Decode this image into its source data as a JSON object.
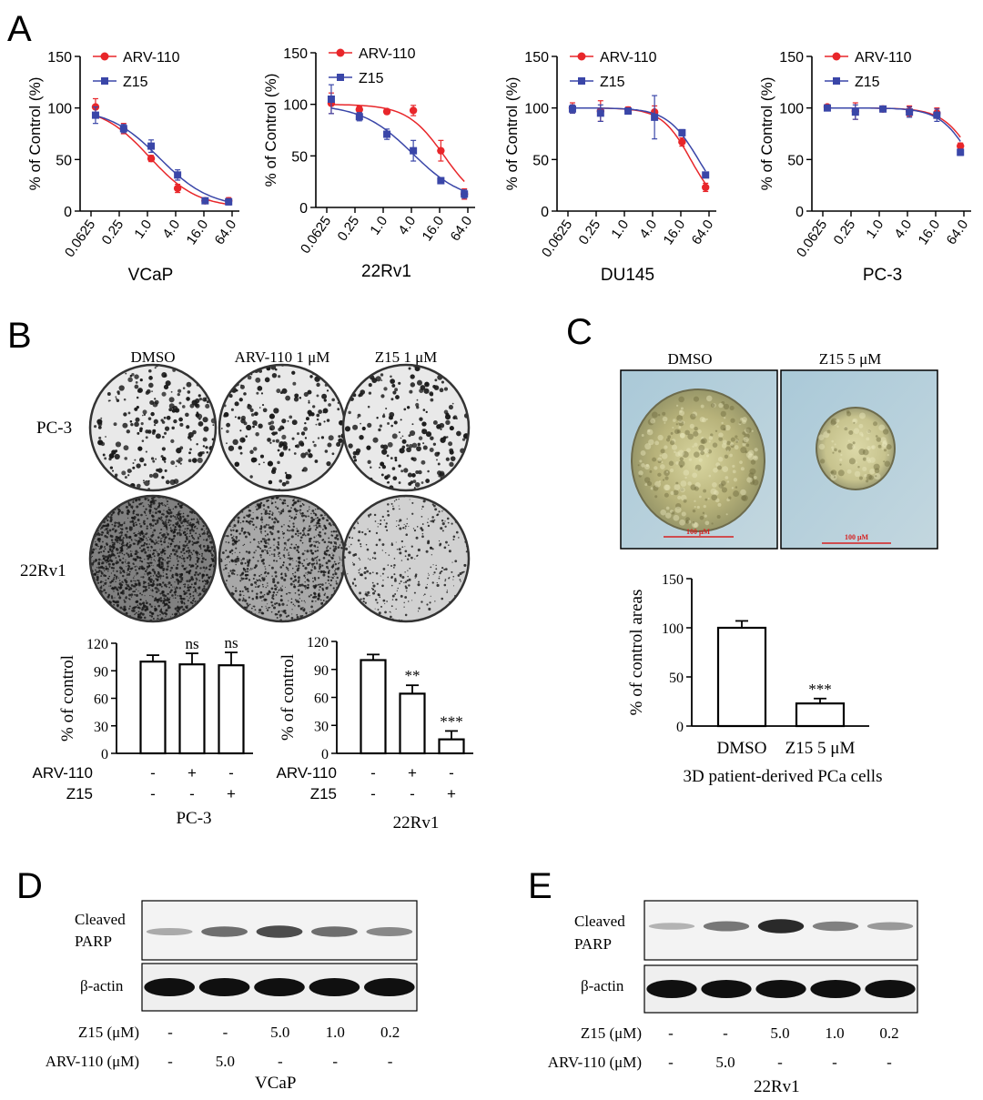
{
  "panel_letters": {
    "A": "A",
    "B": "B",
    "C": "C",
    "D": "D",
    "E": "E"
  },
  "colors": {
    "arv": "#e8262a",
    "z15": "#3a46a8",
    "axis": "#000000"
  },
  "legend": {
    "arv": "ARV-110",
    "z15": "Z15"
  },
  "panelA": {
    "ylabel": "% of Control (%)",
    "yticks": [
      "0",
      "50",
      "100",
      "150"
    ],
    "xticks": [
      "0.0625",
      "0.25",
      "1.0",
      "4.0",
      "16.0",
      "64.0"
    ]
  },
  "chart_data": [
    {
      "type": "line",
      "xlabel": "VCaP",
      "ylabel": "% of Control (%)",
      "x_scale": "log",
      "ylim": [
        0,
        150
      ],
      "x": [
        0.0625,
        0.25,
        1.0,
        4.0,
        16.0,
        64.0
      ],
      "series": [
        {
          "name": "ARV-110",
          "points": [
            [
              0.078,
              101
            ],
            [
              0.31,
              80
            ],
            [
              1.2,
              51
            ],
            [
              4.4,
              22
            ],
            [
              17,
              10
            ],
            [
              54,
              10
            ]
          ],
          "err": [
            8,
            5,
            3,
            4,
            2,
            3
          ],
          "fit": {
            "ic50": 1.1,
            "hill": 0.85,
            "top": 102,
            "bottom": 3
          }
        },
        {
          "name": "Z15",
          "points": [
            [
              0.078,
              93
            ],
            [
              0.31,
              80
            ],
            [
              1.2,
              63
            ],
            [
              4.4,
              35
            ],
            [
              17,
              10
            ],
            [
              54,
              9
            ]
          ],
          "err": [
            8,
            4,
            6,
            5,
            2,
            3
          ],
          "fit": {
            "ic50": 1.8,
            "hill": 0.8,
            "top": 100,
            "bottom": 3
          }
        }
      ]
    },
    {
      "type": "line",
      "xlabel": "22Rv1",
      "ylabel": "% of Control (%)",
      "x_scale": "log",
      "ylim": [
        0,
        150
      ],
      "x": [
        0.0625,
        0.25,
        1.0,
        4.0,
        16.0,
        64.0
      ],
      "series": [
        {
          "name": "ARV-110",
          "points": [
            [
              0.078,
              101
            ],
            [
              0.31,
              95
            ],
            [
              1.2,
              93
            ],
            [
              4.4,
              94
            ],
            [
              17,
              55
            ],
            [
              54,
              13
            ]
          ],
          "err": [
            10,
            3,
            2,
            5,
            10,
            5
          ],
          "fit": {
            "ic50": 20,
            "hill": 1.1,
            "top": 100,
            "bottom": 0
          }
        },
        {
          "name": "Z15",
          "points": [
            [
              0.078,
              105
            ],
            [
              0.31,
              88
            ],
            [
              1.2,
              71
            ],
            [
              4.4,
              55
            ],
            [
              17,
              26
            ],
            [
              54,
              13
            ]
          ],
          "err": [
            14,
            4,
            5,
            10,
            3,
            4
          ],
          "fit": {
            "ic50": 4.2,
            "hill": 0.8,
            "top": 100,
            "bottom": 5
          }
        }
      ]
    },
    {
      "type": "line",
      "xlabel": "DU145",
      "ylabel": "% of Control (%)",
      "x_scale": "log",
      "ylim": [
        0,
        150
      ],
      "x": [
        0.0625,
        0.25,
        1.0,
        4.0,
        16.0,
        64.0
      ],
      "series": [
        {
          "name": "ARV-110",
          "points": [
            [
              0.078,
              100
            ],
            [
              0.31,
              97
            ],
            [
              1.2,
              98
            ],
            [
              4.4,
              96
            ],
            [
              17,
              67
            ],
            [
              54,
              23
            ]
          ],
          "err": [
            5,
            10,
            3,
            6,
            4,
            4
          ],
          "fit": {
            "ic50": 26,
            "hill": 1.4,
            "top": 100,
            "bottom": 0
          }
        },
        {
          "name": "Z15",
          "points": [
            [
              0.078,
              99
            ],
            [
              0.31,
              95
            ],
            [
              1.2,
              97
            ],
            [
              4.4,
              91
            ],
            [
              17,
              76
            ],
            [
              54,
              35
            ]
          ],
          "err": [
            4,
            8,
            2,
            21,
            3,
            2
          ],
          "fit": {
            "ic50": 38,
            "hill": 1.3,
            "top": 100,
            "bottom": 0
          }
        }
      ]
    },
    {
      "type": "line",
      "xlabel": "PC-3",
      "ylabel": "% of Control (%)",
      "x_scale": "log",
      "ylim": [
        0,
        150
      ],
      "x": [
        0.0625,
        0.25,
        1.0,
        4.0,
        16.0,
        64.0
      ],
      "series": [
        {
          "name": "ARV-110",
          "points": [
            [
              0.078,
              101
            ],
            [
              0.31,
              97
            ],
            [
              1.2,
              99
            ],
            [
              4.4,
              97
            ],
            [
              17,
              95
            ],
            [
              54,
              63
            ]
          ],
          "err": [
            2,
            8,
            2,
            5,
            5,
            3
          ],
          "fit": {
            "ic50": 110,
            "hill": 1.3,
            "top": 100,
            "bottom": 0
          }
        },
        {
          "name": "Z15",
          "points": [
            [
              0.078,
              100
            ],
            [
              0.31,
              96
            ],
            [
              1.2,
              99
            ],
            [
              4.4,
              96
            ],
            [
              17,
              93
            ],
            [
              54,
              57
            ]
          ],
          "err": [
            2,
            7,
            2,
            5,
            6,
            3
          ],
          "fit": {
            "ic50": 95,
            "hill": 1.3,
            "top": 100,
            "bottom": 0
          }
        }
      ]
    },
    {
      "type": "bar",
      "xlabel": "PC-3",
      "ylabel": "% of control",
      "ylim": [
        0,
        120
      ],
      "yticks": [
        "0",
        "30",
        "60",
        "90",
        "120"
      ],
      "rows": [
        {
          "label": "ARV-110",
          "marks": [
            "-",
            "+",
            "-"
          ]
        },
        {
          "label": "Z15",
          "marks": [
            "-",
            "-",
            "+"
          ]
        }
      ],
      "values": [
        100,
        97,
        96
      ],
      "err": [
        7,
        12,
        14
      ],
      "sig": [
        "",
        "ns",
        "ns"
      ]
    },
    {
      "type": "bar",
      "xlabel": "22Rv1",
      "ylabel": "% of control",
      "ylim": [
        0,
        120
      ],
      "yticks": [
        "0",
        "30",
        "60",
        "90",
        "120"
      ],
      "rows": [
        {
          "label": "ARV-110",
          "marks": [
            "-",
            "+",
            "-"
          ]
        },
        {
          "label": "Z15",
          "marks": [
            "-",
            "-",
            "+"
          ]
        }
      ],
      "values": [
        100,
        64,
        15
      ],
      "err": [
        6,
        9,
        9
      ],
      "sig": [
        "",
        "**",
        "***"
      ]
    },
    {
      "type": "bar",
      "xlabel": "3D patient-derived PCa cells",
      "ylabel": "% of control areas",
      "ylim": [
        0,
        150
      ],
      "yticks": [
        "0",
        "50",
        "100",
        "150"
      ],
      "categories": [
        "DMSO",
        "Z15 5 μM"
      ],
      "values": [
        100,
        23
      ],
      "err": [
        7,
        5
      ],
      "sig": [
        "",
        "***"
      ]
    }
  ],
  "panelB": {
    "col_labels": [
      "DMSO",
      "ARV-110 1 μM",
      "Z15 1 μM"
    ],
    "row_labels": [
      "PC-3",
      "22Rv1"
    ],
    "colony_density": [
      [
        0.55,
        0.5,
        0.5
      ],
      [
        0.9,
        0.55,
        0.2
      ]
    ]
  },
  "panelC": {
    "images": [
      {
        "label": "DMSO",
        "scale": "100 μM"
      },
      {
        "label": "Z15 5 μM",
        "scale": "100 μM"
      }
    ]
  },
  "panelD": {
    "bands": [
      "Cleaved\nPARP",
      "β-actin"
    ],
    "band_line1": "Cleaved",
    "band_line2": "PARP",
    "actin": "β-actin",
    "rows": [
      {
        "label": "Z15 (μM)",
        "vals": [
          "-",
          "-",
          "5.0",
          "1.0",
          "0.2"
        ]
      },
      {
        "label": "ARV-110 (μM)",
        "vals": [
          "-",
          "5.0",
          "-",
          "-",
          "-"
        ]
      }
    ],
    "cell_line": "VCaP",
    "parp_intensity": [
      0.2,
      0.55,
      0.75,
      0.55,
      0.4
    ]
  },
  "panelE": {
    "band_line1": "Cleaved",
    "band_line2": "PARP",
    "actin": "β-actin",
    "rows": [
      {
        "label": "Z15 (μM)",
        "vals": [
          "-",
          "-",
          "5.0",
          "1.0",
          "0.2"
        ]
      },
      {
        "label": "ARV-110 (μM)",
        "vals": [
          "-",
          "5.0",
          "-",
          "-",
          "-"
        ]
      }
    ],
    "cell_line": "22Rv1",
    "parp_intensity": [
      0.15,
      0.5,
      0.95,
      0.45,
      0.3
    ]
  }
}
